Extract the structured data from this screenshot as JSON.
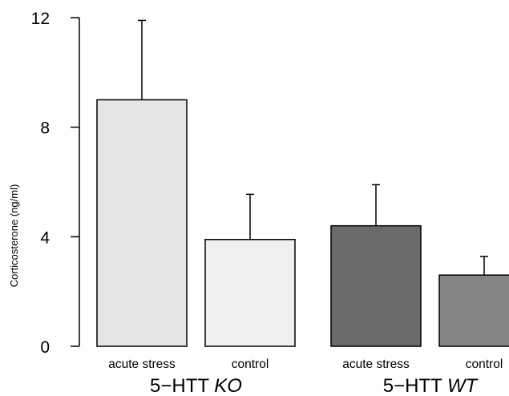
{
  "chart_data": {
    "type": "bar",
    "ylabel": "Corticosterone (ng/ml)",
    "ylim": [
      0,
      12
    ],
    "yticks": [
      "0",
      "4",
      "8",
      "12"
    ],
    "grid": false,
    "groups": [
      {
        "prefix": "5−HTT ",
        "genotype": "KO",
        "bars": [
          {
            "category": "acute stress",
            "value": 9.0,
            "error": 2.9,
            "color": "#e5e5e5"
          },
          {
            "category": "control",
            "value": 3.9,
            "error": 1.65,
            "color": "#f0f0f0"
          }
        ]
      },
      {
        "prefix": "5−HTT ",
        "genotype": "WT",
        "bars": [
          {
            "category": "acute stress",
            "value": 4.4,
            "error": 1.5,
            "color": "#6a6a6a"
          },
          {
            "category": "control",
            "value": 2.6,
            "error": 0.68,
            "color": "#858585"
          }
        ]
      }
    ]
  }
}
